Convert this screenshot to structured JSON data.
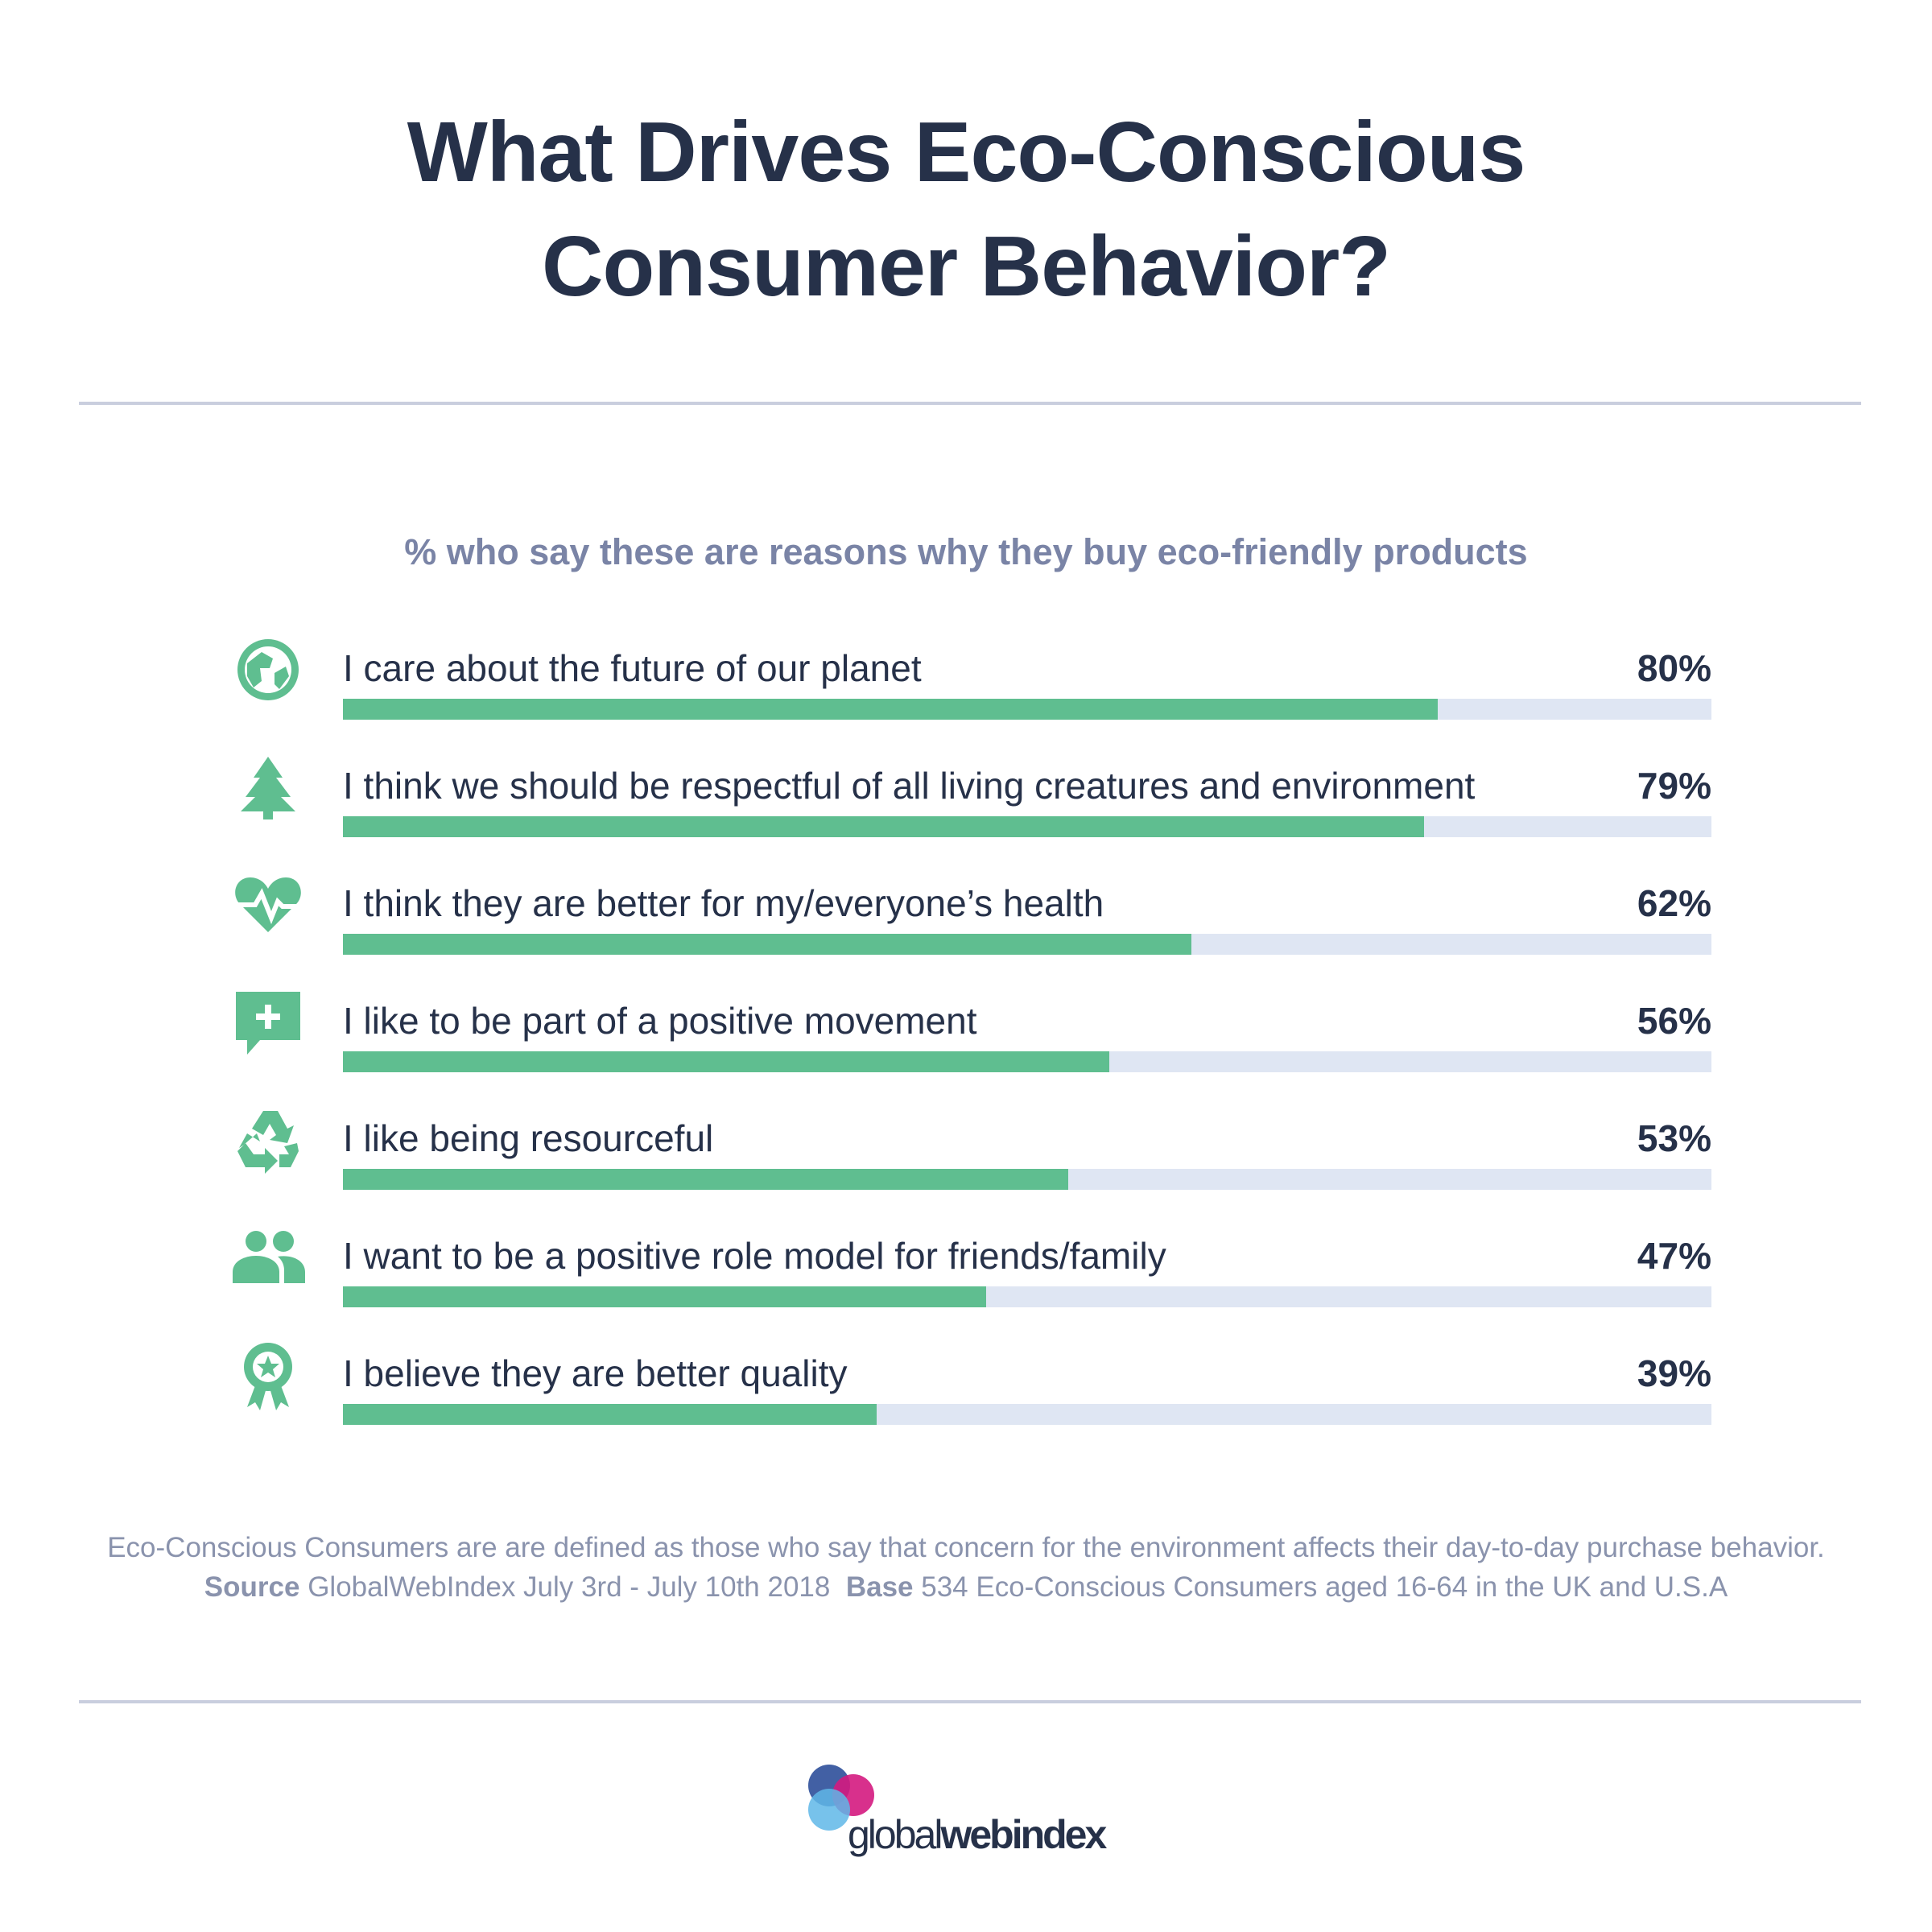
{
  "title_line1": "What Drives Eco-Conscious",
  "title_line2": "Consumer Behavior?",
  "subtitle": "% who say these are reasons why they buy eco-friendly products",
  "colors": {
    "bar": "#5fbe90",
    "track": "#dfe6f3",
    "icon": "#5fbe90",
    "text": "#263149",
    "muted": "#8a93ad"
  },
  "chart_data": {
    "type": "bar",
    "orientation": "horizontal",
    "value_format": "percent",
    "xlim": [
      0,
      100
    ],
    "categories": [
      "I care about the future of our planet",
      "I think we should be respectful of all living creatures and environment",
      "I think they are better for my/everyone’s health",
      "I like to be part of a positive movement",
      "I like being resourceful",
      "I want to be a positive role model for friends/family",
      "I believe they are better quality"
    ],
    "values": [
      80,
      79,
      62,
      56,
      53,
      47,
      39
    ],
    "value_labels": [
      "80%",
      "79%",
      "62%",
      "56%",
      "53%",
      "47%",
      "39%"
    ],
    "icons": [
      "globe-icon",
      "tree-icon",
      "heart-pulse-icon",
      "chat-plus-icon",
      "recycle-icon",
      "people-icon",
      "award-icon"
    ]
  },
  "footnote": {
    "definition": "Eco-Conscious Consumers are are defined as those who say that concern for the environment affects their day-to-day purchase behavior.",
    "source_label": "Source",
    "source_text": "GlobalWebIndex July 3rd - July 10th 2018",
    "base_label": "Base",
    "base_text": "534 Eco-Conscious Consumers aged 16-64 in the UK and U.S.A"
  },
  "logo": {
    "light": "global",
    "bold": "webindex"
  }
}
